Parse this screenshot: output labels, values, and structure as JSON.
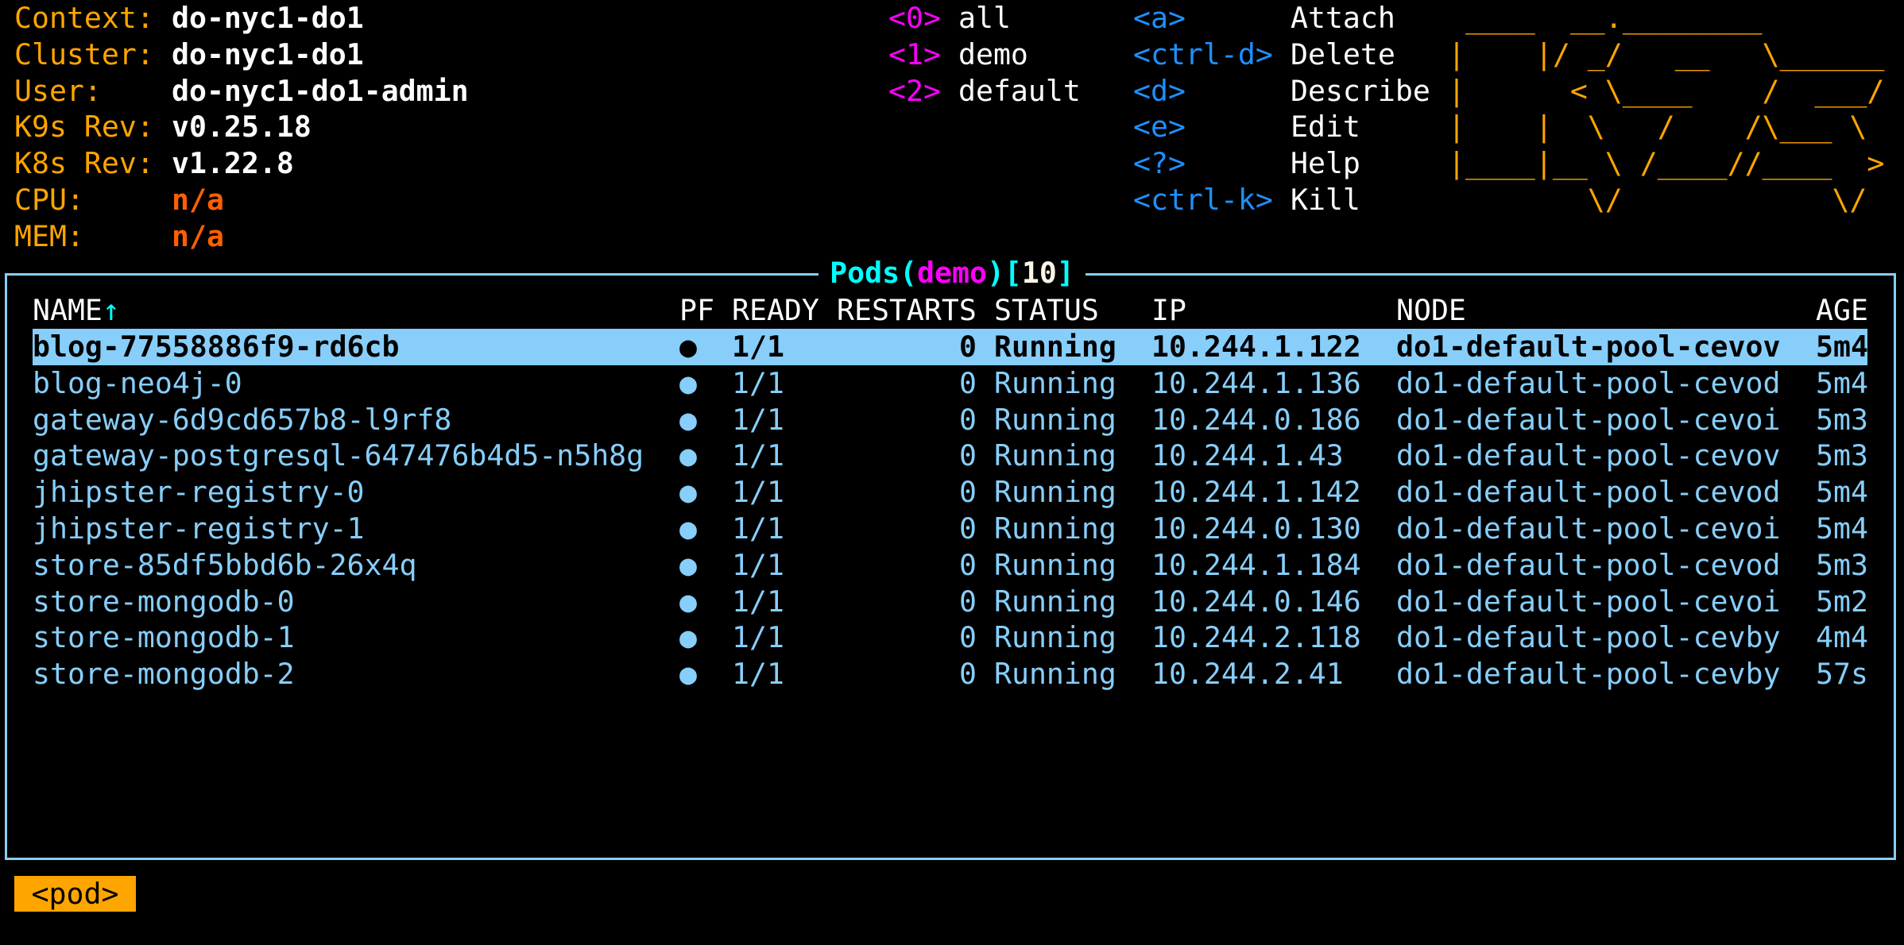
{
  "info": [
    {
      "label": "Context:",
      "value": "do-nyc1-do1",
      "kind": "val"
    },
    {
      "label": "Cluster:",
      "value": "do-nyc1-do1",
      "kind": "val"
    },
    {
      "label": "User:",
      "value": "do-nyc1-do1-admin",
      "kind": "val"
    },
    {
      "label": "K9s Rev:",
      "value": "v0.25.18",
      "kind": "val"
    },
    {
      "label": "K8s Rev:",
      "value": "v1.22.8",
      "kind": "val"
    },
    {
      "label": "CPU:",
      "value": "n/a",
      "kind": "na"
    },
    {
      "label": "MEM:",
      "value": "n/a",
      "kind": "na"
    }
  ],
  "namespaces": [
    {
      "key": "<0>",
      "name": "all"
    },
    {
      "key": "<1>",
      "name": "demo"
    },
    {
      "key": "<2>",
      "name": "default"
    }
  ],
  "hotkeys": [
    {
      "key": "<a>",
      "action": "Attach"
    },
    {
      "key": "<ctrl-d>",
      "action": "Delete"
    },
    {
      "key": "<d>",
      "action": "Describe"
    },
    {
      "key": "<e>",
      "action": "Edit"
    },
    {
      "key": "<?>",
      "action": "Help"
    },
    {
      "key": "<ctrl-k>",
      "action": "Kill"
    }
  ],
  "logo": [
    " ____  __.________       ",
    "|    |/ _/   __   \\______",
    "|      < \\____    /  ___/",
    "|    |  \\   /    /\\___ \\ ",
    "|____|__ \\ /____//____  >",
    "        \\/            \\/ "
  ],
  "view": {
    "resource": "Pods",
    "namespace": "demo",
    "count": "10"
  },
  "table": {
    "columns": [
      "NAME",
      "PF",
      "READY",
      "RESTARTS",
      "STATUS",
      "IP",
      "NODE",
      "AGE"
    ],
    "sort_indicator": "↑",
    "rows": [
      {
        "name": "blog-77558886f9-rd6cb",
        "pf": "●",
        "ready": "1/1",
        "restarts": "0",
        "status": "Running",
        "ip": "10.244.1.122",
        "node": "do1-default-pool-cevov",
        "age": "5m4",
        "selected": true
      },
      {
        "name": "blog-neo4j-0",
        "pf": "●",
        "ready": "1/1",
        "restarts": "0",
        "status": "Running",
        "ip": "10.244.1.136",
        "node": "do1-default-pool-cevod",
        "age": "5m4"
      },
      {
        "name": "gateway-6d9cd657b8-l9rf8",
        "pf": "●",
        "ready": "1/1",
        "restarts": "0",
        "status": "Running",
        "ip": "10.244.0.186",
        "node": "do1-default-pool-cevoi",
        "age": "5m3"
      },
      {
        "name": "gateway-postgresql-647476b4d5-n5h8g",
        "pf": "●",
        "ready": "1/1",
        "restarts": "0",
        "status": "Running",
        "ip": "10.244.1.43",
        "node": "do1-default-pool-cevov",
        "age": "5m3"
      },
      {
        "name": "jhipster-registry-0",
        "pf": "●",
        "ready": "1/1",
        "restarts": "0",
        "status": "Running",
        "ip": "10.244.1.142",
        "node": "do1-default-pool-cevod",
        "age": "5m4"
      },
      {
        "name": "jhipster-registry-1",
        "pf": "●",
        "ready": "1/1",
        "restarts": "0",
        "status": "Running",
        "ip": "10.244.0.130",
        "node": "do1-default-pool-cevoi",
        "age": "5m4"
      },
      {
        "name": "store-85df5bbd6b-26x4q",
        "pf": "●",
        "ready": "1/1",
        "restarts": "0",
        "status": "Running",
        "ip": "10.244.1.184",
        "node": "do1-default-pool-cevod",
        "age": "5m3"
      },
      {
        "name": "store-mongodb-0",
        "pf": "●",
        "ready": "1/1",
        "restarts": "0",
        "status": "Running",
        "ip": "10.244.0.146",
        "node": "do1-default-pool-cevoi",
        "age": "5m2"
      },
      {
        "name": "store-mongodb-1",
        "pf": "●",
        "ready": "1/1",
        "restarts": "0",
        "status": "Running",
        "ip": "10.244.2.118",
        "node": "do1-default-pool-cevby",
        "age": "4m4"
      },
      {
        "name": "store-mongodb-2",
        "pf": "●",
        "ready": "1/1",
        "restarts": "0",
        "status": "Running",
        "ip": "10.244.2.41",
        "node": "do1-default-pool-cevby",
        "age": "57s"
      }
    ]
  },
  "breadcrumb": "<pod>",
  "colors": {
    "label": "#ffa500",
    "namespace_key": "#ff00ff",
    "hotkey": "#1e90ff",
    "table": "#87cefa",
    "title": "#00ffff",
    "selection": "#87cefa"
  }
}
